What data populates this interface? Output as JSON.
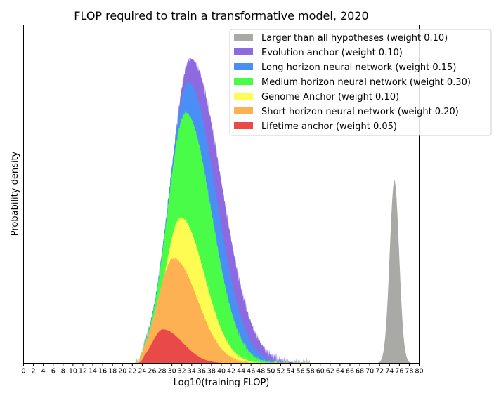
{
  "chart_data": {
    "type": "area",
    "title": "FLOP required to train a transformative model, 2020",
    "xlabel": "Log10(training FLOP)",
    "ylabel": "Probability density",
    "xlim": [
      0,
      80
    ],
    "x_ticks": [
      0,
      2,
      4,
      6,
      8,
      10,
      12,
      14,
      16,
      18,
      20,
      22,
      24,
      26,
      28,
      30,
      32,
      34,
      36,
      38,
      40,
      42,
      44,
      46,
      48,
      50,
      52,
      54,
      56,
      58,
      60,
      62,
      64,
      66,
      68,
      70,
      72,
      74,
      76,
      78,
      80
    ],
    "y_ticks_shown": false,
    "stacked": true,
    "legend_position": "top-right",
    "series": [
      {
        "name": "Larger than all hypotheses (weight 0.10)",
        "color": "#a9aaa6",
        "peak_x": 75,
        "approx_range": [
          72,
          78
        ]
      },
      {
        "name": "Evolution anchor (weight 0.10)",
        "color": "#8d6adf",
        "peak_x": 34,
        "approx_range": [
          24,
          52
        ]
      },
      {
        "name": "Long horizon neural network (weight 0.15)",
        "color": "#4a8ff5",
        "peak_x": 34,
        "approx_range": [
          24,
          50
        ]
      },
      {
        "name": "Medium horizon neural network (weight 0.30)",
        "color": "#49fc47",
        "peak_x": 33,
        "approx_range": [
          23,
          48
        ]
      },
      {
        "name": "Genome Anchor (weight 0.10)",
        "color": "#fefc53",
        "peak_x": 32,
        "approx_range": [
          24,
          44
        ]
      },
      {
        "name": "Short horizon neural network (weight 0.20)",
        "color": "#feb152",
        "peak_x": 31,
        "approx_range": [
          23,
          46
        ]
      },
      {
        "name": "Lifetime anchor (weight 0.05)",
        "color": "#ea4949",
        "peak_x": 28,
        "approx_range": [
          23,
          41
        ]
      }
    ],
    "layer_order_bottom_to_top": [
      "Lifetime anchor (weight 0.05)",
      "Short horizon neural network (weight 0.20)",
      "Genome Anchor (weight 0.10)",
      "Medium horizon neural network (weight 0.30)",
      "Long horizon neural network (weight 0.15)",
      "Evolution anchor (weight 0.10)"
    ]
  }
}
